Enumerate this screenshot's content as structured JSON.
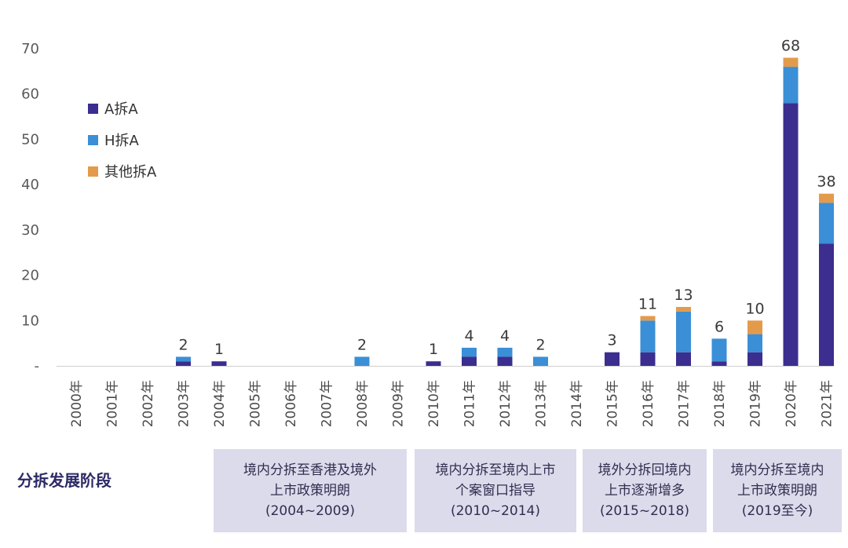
{
  "chart_data": {
    "type": "bar",
    "stacked": true,
    "categories": [
      "2000年",
      "2001年",
      "2002年",
      "2003年",
      "2004年",
      "2005年",
      "2006年",
      "2007年",
      "2008年",
      "2009年",
      "2010年",
      "2011年",
      "2012年",
      "2013年",
      "2014年",
      "2015年",
      "2016年",
      "2017年",
      "2018年",
      "2019年",
      "2020年",
      "2021年"
    ],
    "series": [
      {
        "name": "A拆A",
        "color": "#3b2e8f",
        "values": [
          0,
          0,
          0,
          1,
          1,
          0,
          0,
          0,
          0,
          0,
          1,
          2,
          2,
          0,
          0,
          3,
          3,
          3,
          1,
          3,
          58,
          27
        ]
      },
      {
        "name": "H拆A",
        "color": "#3a8fd6",
        "values": [
          0,
          0,
          0,
          1,
          0,
          0,
          0,
          0,
          2,
          0,
          0,
          2,
          2,
          2,
          0,
          0,
          7,
          9,
          5,
          4,
          8,
          9
        ]
      },
      {
        "name": "其他拆A",
        "color": "#e39b4b",
        "values": [
          0,
          0,
          0,
          0,
          0,
          0,
          0,
          0,
          0,
          0,
          0,
          0,
          0,
          0,
          0,
          0,
          1,
          1,
          0,
          3,
          2,
          2
        ]
      }
    ],
    "totals": [
      "",
      "",
      "",
      "2",
      "1",
      "",
      "",
      "",
      "2",
      "",
      "1",
      "4",
      "4",
      "2",
      "",
      "3",
      "11",
      "13",
      "6",
      "10",
      "68",
      "38"
    ],
    "yticks": [
      "-",
      "10",
      "20",
      "30",
      "40",
      "50",
      "60",
      "70"
    ],
    "ylim": [
      0,
      70
    ],
    "legend_position": "top-left"
  },
  "stages": {
    "title": "分拆发展阶段",
    "items": [
      {
        "line1": "境内分拆至香港及境外",
        "line2": "上市政策明朗",
        "line3": "(2004~2009)"
      },
      {
        "line1": "境内分拆至境内上市",
        "line2": "个案窗口指导",
        "line3": "(2010~2014)"
      },
      {
        "line1": "境外分拆回境内",
        "line2": "上市逐渐增多",
        "line3": "(2015~2018)"
      },
      {
        "line1": "境内分拆至境内",
        "line2": "上市政策明朗",
        "line3": "(2019至今)"
      }
    ]
  }
}
